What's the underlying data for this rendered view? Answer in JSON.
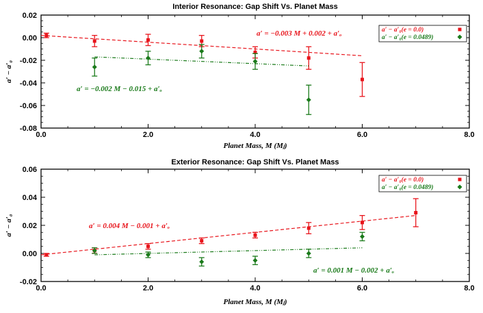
{
  "chart_data": [
    {
      "type": "scatter",
      "title": "Interior Resonance: Gap Shift Vs. Planet Mass",
      "xlabel": "Planet Mass, M (Mⱼ)",
      "ylabel": "a′ − a′₀",
      "xlim": [
        0,
        8
      ],
      "ylim": [
        -0.08,
        0.02
      ],
      "xticks": [
        0,
        2,
        4,
        6,
        8
      ],
      "xtick_labels": [
        "0.0",
        "2.0",
        "4.0",
        "6.0",
        "8.0"
      ],
      "yticks": [
        -0.08,
        -0.06,
        -0.04,
        -0.02,
        0.0,
        0.02
      ],
      "ytick_labels": [
        "-0.08",
        "-0.06",
        "-0.04",
        "-0.02",
        "0.00",
        "0.02"
      ],
      "series": [
        {
          "name": "a′ − a′₀(e = 0.0)",
          "color": "#e8141b",
          "marker": "square",
          "x": [
            0.1,
            1,
            2,
            3,
            4,
            5,
            6
          ],
          "y": [
            0.002,
            -0.003,
            -0.002,
            -0.003,
            -0.013,
            -0.018,
            -0.037
          ],
          "err": [
            0.002,
            0.005,
            0.005,
            0.005,
            0.005,
            0.01,
            0.015
          ],
          "fit": {
            "slope": -0.003,
            "intercept": 0.002,
            "x_range": [
              0,
              6
            ],
            "label": "a′ = −0.003 M + 0.002 + a′ₒ"
          }
        },
        {
          "name": "a′ − a′₀(e = 0.0489)",
          "color": "#1a7a1a",
          "marker": "diamond",
          "x": [
            1,
            2,
            3,
            4,
            5
          ],
          "y": [
            -0.026,
            -0.018,
            -0.012,
            -0.021,
            -0.055
          ],
          "err": [
            0.008,
            0.006,
            0.006,
            0.007,
            0.013
          ],
          "fit": {
            "slope": -0.002,
            "intercept": -0.015,
            "x_range": [
              1,
              5
            ],
            "label": "a′ = −0.002 M − 0.015 + a′ₒ"
          }
        }
      ],
      "legend": "top-right"
    },
    {
      "type": "scatter",
      "title": "Exterior Resonance: Gap Shift Vs. Planet Mass",
      "xlabel": "Planet Mass, M (Mⱼ)",
      "ylabel": "a′ − a′₀",
      "xlim": [
        0,
        8
      ],
      "ylim": [
        -0.02,
        0.06
      ],
      "xticks": [
        0,
        2,
        4,
        6,
        8
      ],
      "xtick_labels": [
        "0.0",
        "2.0",
        "4.0",
        "6.0",
        "8.0"
      ],
      "yticks": [
        -0.02,
        0.0,
        0.02,
        0.04,
        0.06
      ],
      "ytick_labels": [
        "-0.02",
        "0.00",
        "0.02",
        "0.04",
        "0.06"
      ],
      "series": [
        {
          "name": "a′ − a′₀(e = 0.0)",
          "color": "#e8141b",
          "marker": "square",
          "x": [
            0.1,
            1,
            2,
            3,
            4,
            5,
            6,
            7
          ],
          "y": [
            -0.001,
            0.002,
            0.005,
            0.009,
            0.013,
            0.018,
            0.022,
            0.029
          ],
          "err": [
            0.001,
            0.002,
            0.002,
            0.002,
            0.002,
            0.004,
            0.005,
            0.01
          ],
          "fit": {
            "slope": 0.004,
            "intercept": -0.001,
            "x_range": [
              0,
              7
            ],
            "label": "a′ = 0.004 M − 0.001 + a′ₒ"
          }
        },
        {
          "name": "a′ − a′₀(e = 0.0489)",
          "color": "#1a7a1a",
          "marker": "diamond",
          "x": [
            1,
            2,
            3,
            4,
            5,
            6
          ],
          "y": [
            0.002,
            -0.001,
            -0.006,
            -0.005,
            0.0,
            0.012
          ],
          "err": [
            0.002,
            0.002,
            0.003,
            0.003,
            0.003,
            0.003
          ],
          "fit": {
            "slope": 0.001,
            "intercept": -0.002,
            "x_range": [
              1,
              6
            ],
            "label": "a′ = 0.001 M − 0.002 + a′ₒ"
          }
        }
      ],
      "legend": "top-right"
    }
  ]
}
